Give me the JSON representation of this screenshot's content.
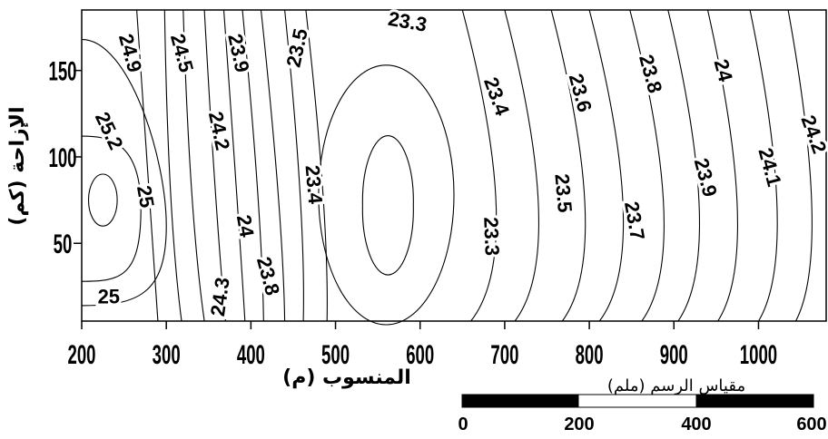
{
  "chart_data": {
    "type": "contour",
    "xlabel": "المنسوب (م)",
    "ylabel": "الإزاحة (كم)",
    "xlim": [
      200,
      1080
    ],
    "ylim": [
      5,
      185
    ],
    "x_ticks": [
      200,
      300,
      400,
      500,
      600,
      700,
      800,
      900,
      1000
    ],
    "y_ticks": [
      50,
      100,
      150
    ],
    "grid": false,
    "contour_labels": [
      {
        "text": "23.3",
        "x": 585,
        "y": 178,
        "rotation": 10
      },
      {
        "text": "24.9",
        "x": 257,
        "y": 160,
        "rotation": 75
      },
      {
        "text": "24.5",
        "x": 318,
        "y": 160,
        "rotation": 75
      },
      {
        "text": "23.9",
        "x": 385,
        "y": 160,
        "rotation": 78
      },
      {
        "text": "23.5",
        "x": 455,
        "y": 163,
        "rotation": -78
      },
      {
        "text": "25.2",
        "x": 232,
        "y": 115,
        "rotation": 65
      },
      {
        "text": "24.2",
        "x": 362,
        "y": 115,
        "rotation": 78
      },
      {
        "text": "23.4",
        "x": 690,
        "y": 135,
        "rotation": 70
      },
      {
        "text": "23.6",
        "x": 789,
        "y": 137,
        "rotation": 75
      },
      {
        "text": "23.8",
        "x": 872,
        "y": 148,
        "rotation": 75
      },
      {
        "text": "24",
        "x": 958,
        "y": 150,
        "rotation": 75
      },
      {
        "text": "24.2",
        "x": 1065,
        "y": 113,
        "rotation": 70
      },
      {
        "text": "23.9",
        "x": 937,
        "y": 88,
        "rotation": 75
      },
      {
        "text": "24.1",
        "x": 1013,
        "y": 94,
        "rotation": 75
      },
      {
        "text": "23.4",
        "x": 474,
        "y": 84,
        "rotation": 85
      },
      {
        "text": "23.5",
        "x": 769,
        "y": 79,
        "rotation": 85
      },
      {
        "text": "23.7",
        "x": 853,
        "y": 63,
        "rotation": 80
      },
      {
        "text": "23.3",
        "x": 684,
        "y": 54,
        "rotation": 88
      },
      {
        "text": "25",
        "x": 275,
        "y": 77,
        "rotation": 80
      },
      {
        "text": "24",
        "x": 393,
        "y": 60,
        "rotation": 80
      },
      {
        "text": "25",
        "x": 232,
        "y": 19,
        "rotation": 0
      },
      {
        "text": "24.3",
        "x": 364,
        "y": 19,
        "rotation": -82
      },
      {
        "text": "23.8",
        "x": 420,
        "y": 31,
        "rotation": 75
      }
    ]
  },
  "scale_bar": {
    "caption": "مقياس الرسم (ملم)",
    "ticks": [
      "0",
      "200",
      "400",
      "600"
    ]
  }
}
